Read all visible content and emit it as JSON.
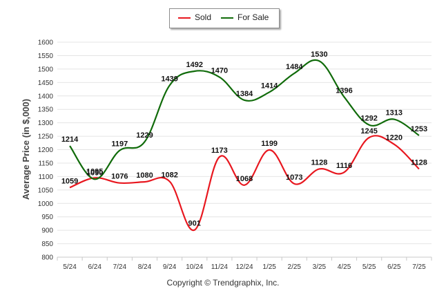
{
  "chart_data": {
    "type": "line",
    "categories": [
      "5/24",
      "6/24",
      "7/24",
      "8/24",
      "9/24",
      "10/24",
      "11/24",
      "12/24",
      "1/25",
      "2/25",
      "3/25",
      "4/25",
      "5/25",
      "6/25",
      "7/25"
    ],
    "series": [
      {
        "name": "Sold",
        "color": "#e8171f",
        "values": [
          1059,
          1095,
          1076,
          1080,
          1082,
          901,
          1173,
          1068,
          1199,
          1073,
          1128,
          1116,
          1245,
          1220,
          1128
        ]
      },
      {
        "name": "For Sale",
        "color": "#106b0a",
        "values": [
          1214,
          1090,
          1197,
          1229,
          1439,
          1492,
          1470,
          1384,
          1414,
          1484,
          1530,
          1396,
          1292,
          1313,
          1253
        ]
      }
    ],
    "ylabel": "Average Price (in $,000)",
    "xlabel": "",
    "ylim": [
      800,
      1600
    ],
    "yticks": [
      800,
      850,
      900,
      950,
      1000,
      1050,
      1100,
      1150,
      1200,
      1250,
      1300,
      1350,
      1400,
      1450,
      1500,
      1550,
      1600
    ],
    "grid": true,
    "legend_position": "top-center"
  },
  "legend": {
    "sold_label": "Sold",
    "forsale_label": "For Sale"
  },
  "credit": "Copyright © Trendgraphix, Inc."
}
